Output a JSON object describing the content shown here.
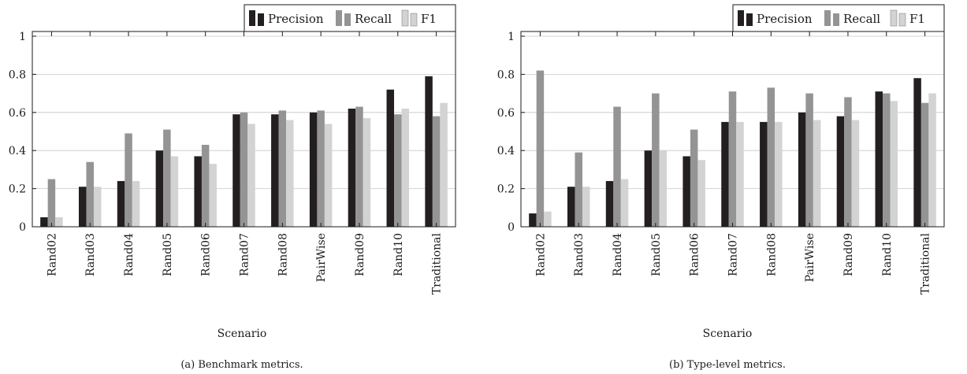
{
  "colors": {
    "precision": "#231f20",
    "recall": "#949494",
    "f1": "#d3d3d3",
    "axis": "#1a1a1a",
    "grid": "#c8c8c8"
  },
  "chart_data": [
    {
      "type": "bar",
      "caption": "(a) Benchmark metrics.",
      "xlabel": "Scenario",
      "ylabel": "",
      "ylim": [
        0,
        1
      ],
      "yticks": [
        "0",
        "0.2",
        "0.4",
        "0.6",
        "0.8",
        "1"
      ],
      "grid": true,
      "legend_position": "top-right",
      "categories": [
        "Rand02",
        "Rand03",
        "Rand04",
        "Rand05",
        "Rand06",
        "Rand07",
        "Rand08",
        "PairWise",
        "Rand09",
        "Rand10",
        "Traditional"
      ],
      "series": [
        {
          "name": "Precision",
          "values": [
            0.05,
            0.21,
            0.24,
            0.4,
            0.37,
            0.59,
            0.59,
            0.6,
            0.62,
            0.72,
            0.79
          ]
        },
        {
          "name": "Recall",
          "values": [
            0.25,
            0.34,
            0.49,
            0.51,
            0.43,
            0.6,
            0.61,
            0.61,
            0.63,
            0.59,
            0.58
          ]
        },
        {
          "name": "F1",
          "values": [
            0.05,
            0.21,
            0.24,
            0.37,
            0.33,
            0.54,
            0.56,
            0.54,
            0.57,
            0.62,
            0.65
          ]
        }
      ]
    },
    {
      "type": "bar",
      "caption": "(b) Type-level metrics.",
      "xlabel": "Scenario",
      "ylabel": "",
      "ylim": [
        0,
        1
      ],
      "yticks": [
        "0",
        "0.2",
        "0.4",
        "0.6",
        "0.8",
        "1"
      ],
      "grid": true,
      "legend_position": "top-right",
      "categories": [
        "Rand02",
        "Rand03",
        "Rand04",
        "Rand05",
        "Rand06",
        "Rand07",
        "Rand08",
        "PairWise",
        "Rand09",
        "Rand10",
        "Traditional"
      ],
      "series": [
        {
          "name": "Precision",
          "values": [
            0.07,
            0.21,
            0.24,
            0.4,
            0.37,
            0.55,
            0.55,
            0.6,
            0.58,
            0.71,
            0.78
          ]
        },
        {
          "name": "Recall",
          "values": [
            0.82,
            0.39,
            0.63,
            0.7,
            0.51,
            0.71,
            0.73,
            0.7,
            0.68,
            0.7,
            0.65
          ]
        },
        {
          "name": "F1",
          "values": [
            0.08,
            0.21,
            0.25,
            0.4,
            0.35,
            0.55,
            0.55,
            0.56,
            0.56,
            0.66,
            0.7
          ]
        }
      ]
    }
  ]
}
